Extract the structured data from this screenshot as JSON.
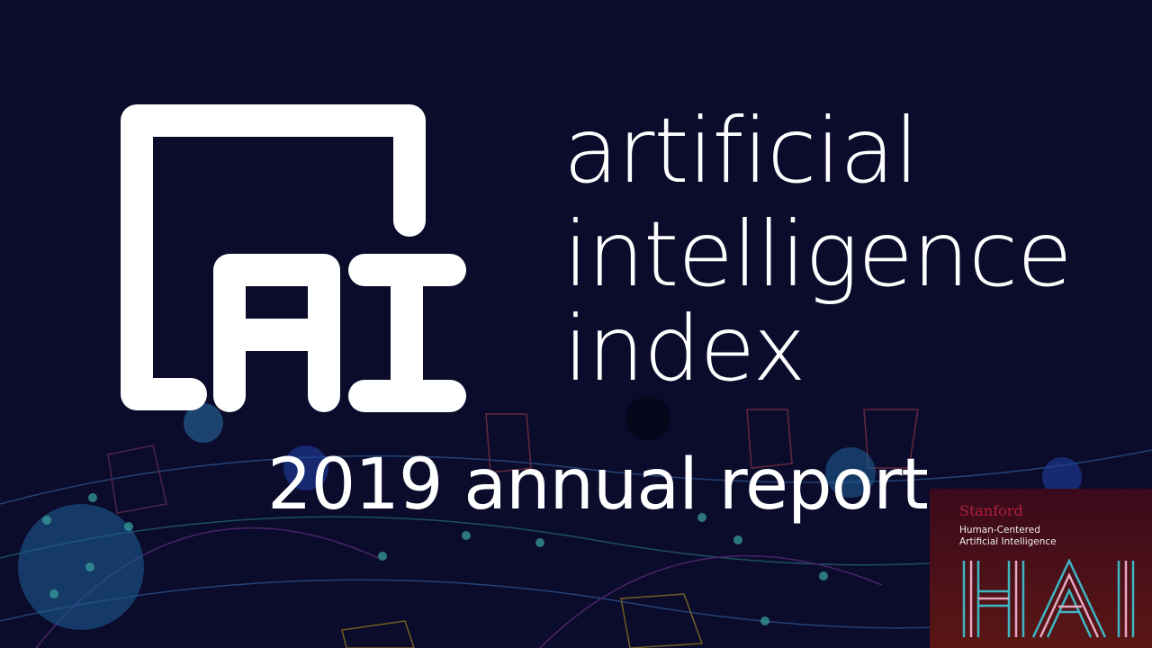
{
  "title_lines": [
    "artificial",
    "intelligence",
    "index"
  ],
  "logo_text": "AI",
  "subtitle": "2019 annual report",
  "hai_logo": {
    "stanford": "Stanford",
    "line1": "Human-Centered",
    "line2": "Artificial Intelligence",
    "mark": "HAI"
  },
  "colors": {
    "background": "#0b0b2b",
    "text": "#ffffff",
    "stanford_red": "#b0203c",
    "hai_teal": "#3fb6c4",
    "hai_pink": "#e8a6c4"
  }
}
